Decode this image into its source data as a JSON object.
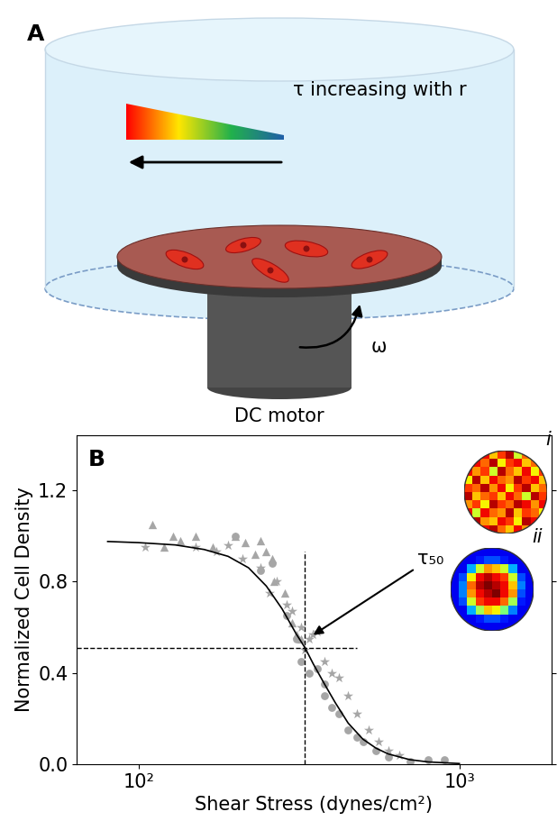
{
  "diagram": {
    "label": "A",
    "gradient_label": "τ increasing with r",
    "rotation_label": "ω",
    "motor_label": "DC motor"
  },
  "chart_data": {
    "type": "scatter",
    "panel_label": "B",
    "x_label": "Shear Stress (dynes/cm²)",
    "y_label": "Normalized Cell Density",
    "log": "x",
    "grid": false,
    "xlim": [
      64,
      1940
    ],
    "ylim": [
      0.0,
      1.44
    ],
    "xticks": [
      {
        "value": 100,
        "label": "10²"
      },
      {
        "value": 1000,
        "label": "10³"
      }
    ],
    "yticks": [
      0.0,
      0.4,
      0.8,
      1.2
    ],
    "series": [
      {
        "type": "scatter",
        "marker": "triangle",
        "color": "#a6a6a6",
        "x": [
          110,
          120,
          128,
          135,
          150,
          170,
          200,
          215,
          230,
          240,
          250,
          260,
          265,
          285,
          300,
          310,
          320
        ],
        "values": [
          1.05,
          0.95,
          1.0,
          0.98,
          1.0,
          0.95,
          1.0,
          0.97,
          0.92,
          0.98,
          0.93,
          0.9,
          0.8,
          0.75,
          0.62,
          0.57,
          0.55
        ]
      },
      {
        "type": "scatter",
        "marker": "star",
        "color": "#a6a6a6",
        "x": [
          105,
          150,
          175,
          190,
          210,
          240,
          255,
          270,
          290,
          300,
          320,
          330,
          340,
          350,
          360,
          380,
          400,
          420,
          450,
          480,
          520,
          560,
          600,
          650
        ],
        "values": [
          0.95,
          0.95,
          0.93,
          0.96,
          0.9,
          0.86,
          0.75,
          0.8,
          0.7,
          0.67,
          0.6,
          0.5,
          0.55,
          0.57,
          0.58,
          0.45,
          0.4,
          0.38,
          0.3,
          0.22,
          0.15,
          0.1,
          0.06,
          0.04
        ]
      },
      {
        "type": "scatter",
        "marker": "circle",
        "color": "#a6a6a6",
        "x": [
          200,
          240,
          260,
          290,
          310,
          320,
          340,
          360,
          380,
          380,
          400,
          420,
          450,
          480,
          500,
          550,
          600,
          700,
          800,
          900
        ],
        "values": [
          1.0,
          0.85,
          0.88,
          0.65,
          0.55,
          0.45,
          0.4,
          0.42,
          0.35,
          0.3,
          0.25,
          0.22,
          0.15,
          0.12,
          0.1,
          0.06,
          0.03,
          0.01,
          0.02,
          0.02
        ]
      },
      {
        "type": "line",
        "line_style": "solid",
        "color": "#000000",
        "x": [
          80,
          100,
          130,
          160,
          190,
          220,
          250,
          280,
          310,
          330,
          350,
          380,
          410,
          450,
          500,
          550,
          600,
          700,
          800,
          1000
        ],
        "values": [
          0.975,
          0.97,
          0.96,
          0.94,
          0.91,
          0.86,
          0.78,
          0.68,
          0.57,
          0.51,
          0.44,
          0.35,
          0.27,
          0.18,
          0.11,
          0.07,
          0.045,
          0.02,
          0.01,
          0.003
        ]
      }
    ],
    "reference_lines": [
      {
        "x": 330,
        "y_to": 0.93,
        "line_style": "dashed",
        "color": "#000000"
      },
      {
        "y": 0.51,
        "x_to": 480,
        "line_style": "dashed",
        "color": "#000000"
      }
    ],
    "annotations": [
      {
        "text": "τ₅₀",
        "x": 345,
        "y": 0.56
      }
    ],
    "insets": [
      {
        "label": "i",
        "range": [
          0,
          1
        ],
        "cells": [
          [
            0.8,
            0.65,
            0.9,
            0.7,
            0.85,
            0.95,
            0.6,
            0.8,
            0.9,
            0.75
          ],
          [
            0.7,
            0.9,
            0.8,
            0.95,
            0.65,
            0.85,
            0.9,
            0.7,
            0.8,
            0.95
          ],
          [
            0.9,
            0.75,
            0.85,
            0.6,
            0.95,
            0.8,
            0.7,
            0.9,
            0.65,
            0.85
          ],
          [
            0.65,
            0.95,
            0.7,
            0.9,
            0.8,
            0.75,
            0.95,
            0.85,
            0.9,
            0.7
          ],
          [
            0.85,
            0.8,
            0.95,
            0.75,
            0.9,
            0.65,
            0.85,
            0.95,
            0.7,
            0.8
          ],
          [
            0.95,
            0.7,
            0.8,
            0.85,
            0.7,
            0.9,
            0.8,
            0.6,
            0.95,
            0.85
          ],
          [
            0.75,
            0.85,
            0.65,
            0.95,
            0.85,
            0.8,
            0.95,
            0.9,
            0.75,
            0.9
          ],
          [
            0.9,
            0.6,
            0.9,
            0.8,
            0.75,
            0.95,
            0.7,
            0.85,
            0.8,
            0.65
          ],
          [
            0.8,
            0.95,
            0.75,
            0.7,
            0.9,
            0.85,
            0.65,
            0.95,
            0.9,
            0.8
          ],
          [
            0.7,
            0.85,
            0.9,
            0.95,
            0.8,
            0.7,
            0.9,
            0.75,
            0.85,
            0.95
          ]
        ]
      },
      {
        "label": "ii",
        "range": [
          0,
          1
        ],
        "cells": [
          [
            0.1,
            0.1,
            0.1,
            0.1,
            0.1,
            0.1,
            0.1,
            0.1,
            0.1,
            0.1
          ],
          [
            0.1,
            0.1,
            0.1,
            0.15,
            0.2,
            0.2,
            0.15,
            0.1,
            0.1,
            0.1
          ],
          [
            0.1,
            0.1,
            0.3,
            0.6,
            0.75,
            0.7,
            0.6,
            0.3,
            0.1,
            0.1
          ],
          [
            0.1,
            0.2,
            0.65,
            0.9,
            0.95,
            0.9,
            0.85,
            0.6,
            0.2,
            0.1
          ],
          [
            0.1,
            0.25,
            0.8,
            0.95,
            1.0,
            0.95,
            0.9,
            0.7,
            0.25,
            0.1
          ],
          [
            0.1,
            0.25,
            0.75,
            0.9,
            0.95,
            1.0,
            0.9,
            0.75,
            0.2,
            0.1
          ],
          [
            0.1,
            0.2,
            0.6,
            0.85,
            0.9,
            0.9,
            0.8,
            0.55,
            0.15,
            0.1
          ],
          [
            0.1,
            0.1,
            0.3,
            0.55,
            0.7,
            0.65,
            0.5,
            0.25,
            0.1,
            0.1
          ],
          [
            0.1,
            0.1,
            0.1,
            0.15,
            0.2,
            0.2,
            0.15,
            0.1,
            0.1,
            0.1
          ],
          [
            0.1,
            0.1,
            0.1,
            0.1,
            0.1,
            0.1,
            0.1,
            0.1,
            0.1,
            0.1
          ]
        ]
      }
    ]
  }
}
